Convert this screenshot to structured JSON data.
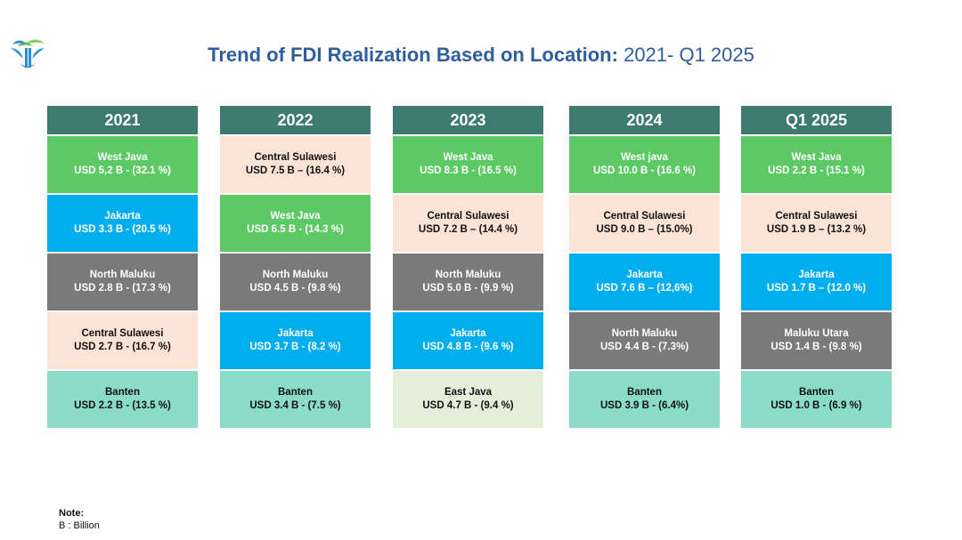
{
  "title": {
    "bold": "Trend of FDI Realization Based on Location:",
    "normal": "2021- Q1 2025"
  },
  "columns": [
    {
      "header": "2021",
      "cells": [
        {
          "name": "West Java",
          "value": "USD 5,2 B - (32.1 %)",
          "color": "#5dc965"
        },
        {
          "name": "Jakarta",
          "value": "USD 3.3 B - (20.5 %)",
          "color": "#00adef"
        },
        {
          "name": "North Maluku",
          "value": "USD 2.8 B - (17.3 %)",
          "color": "#7a7a7a"
        },
        {
          "name": "Central Sulawesi",
          "value": "USD 2.7 B - (16.7 %)",
          "color": "#fbe3d6"
        },
        {
          "name": "Banten",
          "value": "USD 2.2 B - (13.5 %)",
          "color": "#8adcc6"
        }
      ]
    },
    {
      "header": "2022",
      "cells": [
        {
          "name": "Central Sulawesi",
          "value": "USD 7.5 B – (16.4 %)",
          "color": "#fbe3d6"
        },
        {
          "name": "West Java",
          "value": "USD 6.5 B - (14.3 %)",
          "color": "#5dc965"
        },
        {
          "name": "North Maluku",
          "value": "USD 4.5 B - (9.8 %)",
          "color": "#7a7a7a"
        },
        {
          "name": "Jakarta",
          "value": "USD 3.7 B - (8.2 %)",
          "color": "#00adef"
        },
        {
          "name": "Banten",
          "value": "USD 3.4 B - (7.5 %)",
          "color": "#8adcc6"
        }
      ]
    },
    {
      "header": "2023",
      "cells": [
        {
          "name": "West Java",
          "value": "USD 8.3 B - (16.5 %)",
          "color": "#5dc965"
        },
        {
          "name": "Central Sulawesi",
          "value": "USD 7.2 B – (14.4 %)",
          "color": "#fbe3d6"
        },
        {
          "name": "North Maluku",
          "value": "USD 5.0 B - (9.9 %)",
          "color": "#7a7a7a"
        },
        {
          "name": "Jakarta",
          "value": "USD 4.8 B - (9.6 %)",
          "color": "#00adef"
        },
        {
          "name": "East Java",
          "value": "USD 4.7 B - (9.4 %)",
          "color": "#e3efda"
        }
      ]
    },
    {
      "header": "2024",
      "cells": [
        {
          "name": "West java",
          "value": "USD 10.0 B - (16.6 %)",
          "color": "#5dc965"
        },
        {
          "name": "Central Sulawesi",
          "value": "USD 9.0 B – (15.0%)",
          "color": "#fbe3d6"
        },
        {
          "name": "Jakarta",
          "value": "USD 7.6 B – (12,6%)",
          "color": "#00adef"
        },
        {
          "name": "North Maluku",
          "value": "USD 4.4 B - (7.3%)",
          "color": "#7a7a7a"
        },
        {
          "name": "Banten",
          "value": "USD 3.9 B - (6.4%)",
          "color": "#8adcc6"
        }
      ]
    },
    {
      "header": "Q1 2025",
      "cells": [
        {
          "name": "West Java",
          "value": "USD 2.2 B - (15.1 %)",
          "color": "#5dc965"
        },
        {
          "name": "Central Sulawesi",
          "value": "USD 1.9 B – (13.2 %)",
          "color": "#fbe3d6"
        },
        {
          "name": "Jakarta",
          "value": "USD 1.7 B – (12.0 %)",
          "color": "#00adef"
        },
        {
          "name": "Maluku Utara",
          "value": "USD 1.4 B - (9.8 %)",
          "color": "#7a7a7a"
        },
        {
          "name": "Banten",
          "value": "USD 1.0 B - (6.9 %)",
          "color": "#8adcc6"
        }
      ]
    }
  ],
  "note": {
    "heading": "Note:",
    "text": "B :  Billion"
  },
  "logo_icon": "bkpm-leaf-logo-icon"
}
